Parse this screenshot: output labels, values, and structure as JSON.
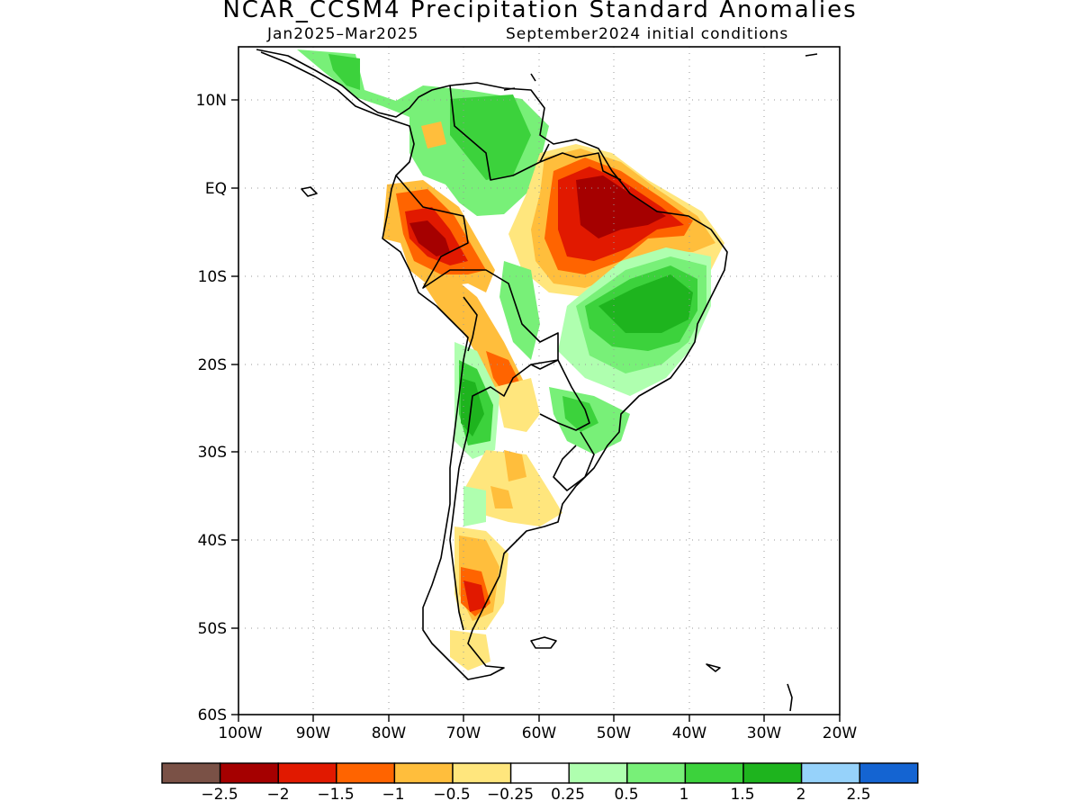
{
  "title": "NCAR_CCSM4 Precipitation Standard Anomalies",
  "subtitle_left": "Jan2025–Mar2025",
  "subtitle_right": "September2024 initial conditions",
  "map": {
    "lon_range": [
      -100,
      -20
    ],
    "lat_range": [
      -60,
      15
    ],
    "lon_ticks": [
      "100W",
      "90W",
      "80W",
      "70W",
      "60W",
      "50W",
      "40W",
      "30W",
      "20W"
    ],
    "lat_ticks": [
      "10N",
      "EQ",
      "10S",
      "20S",
      "30S",
      "40S",
      "50S",
      "60S"
    ],
    "grid": "dotted",
    "coastline_color": "#000000"
  },
  "legend": {
    "colors": [
      "#7a5146",
      "#a50000",
      "#e11900",
      "#ff6400",
      "#ffbe3c",
      "#ffe67d",
      "#ffffff",
      "#afffaf",
      "#78f078",
      "#3cd23c",
      "#1eb41e",
      "#96d2fa",
      "#1464d2"
    ],
    "labels": [
      "−2.5",
      "−2",
      "−1.5",
      "−1",
      "−0.5",
      "−0.25",
      "0.25",
      "0.5",
      "1",
      "1.5",
      "2",
      "2.5"
    ]
  },
  "anomaly_regions": [
    {
      "name": "northeast-brazil-dry",
      "level": "-2 to -2.5",
      "color": "#a50000"
    },
    {
      "name": "east-brazil-wet",
      "level": "1.5 to 2",
      "color": "#1eb41e"
    },
    {
      "name": "peru-amazon-dry",
      "level": "-2",
      "color": "#a50000"
    },
    {
      "name": "venezuela-wet",
      "level": "1",
      "color": "#3cd23c"
    },
    {
      "name": "chile-wet",
      "level": "1.5",
      "color": "#3cd23c"
    },
    {
      "name": "patagonia-dry",
      "level": "-1.5",
      "color": "#e11900"
    }
  ]
}
